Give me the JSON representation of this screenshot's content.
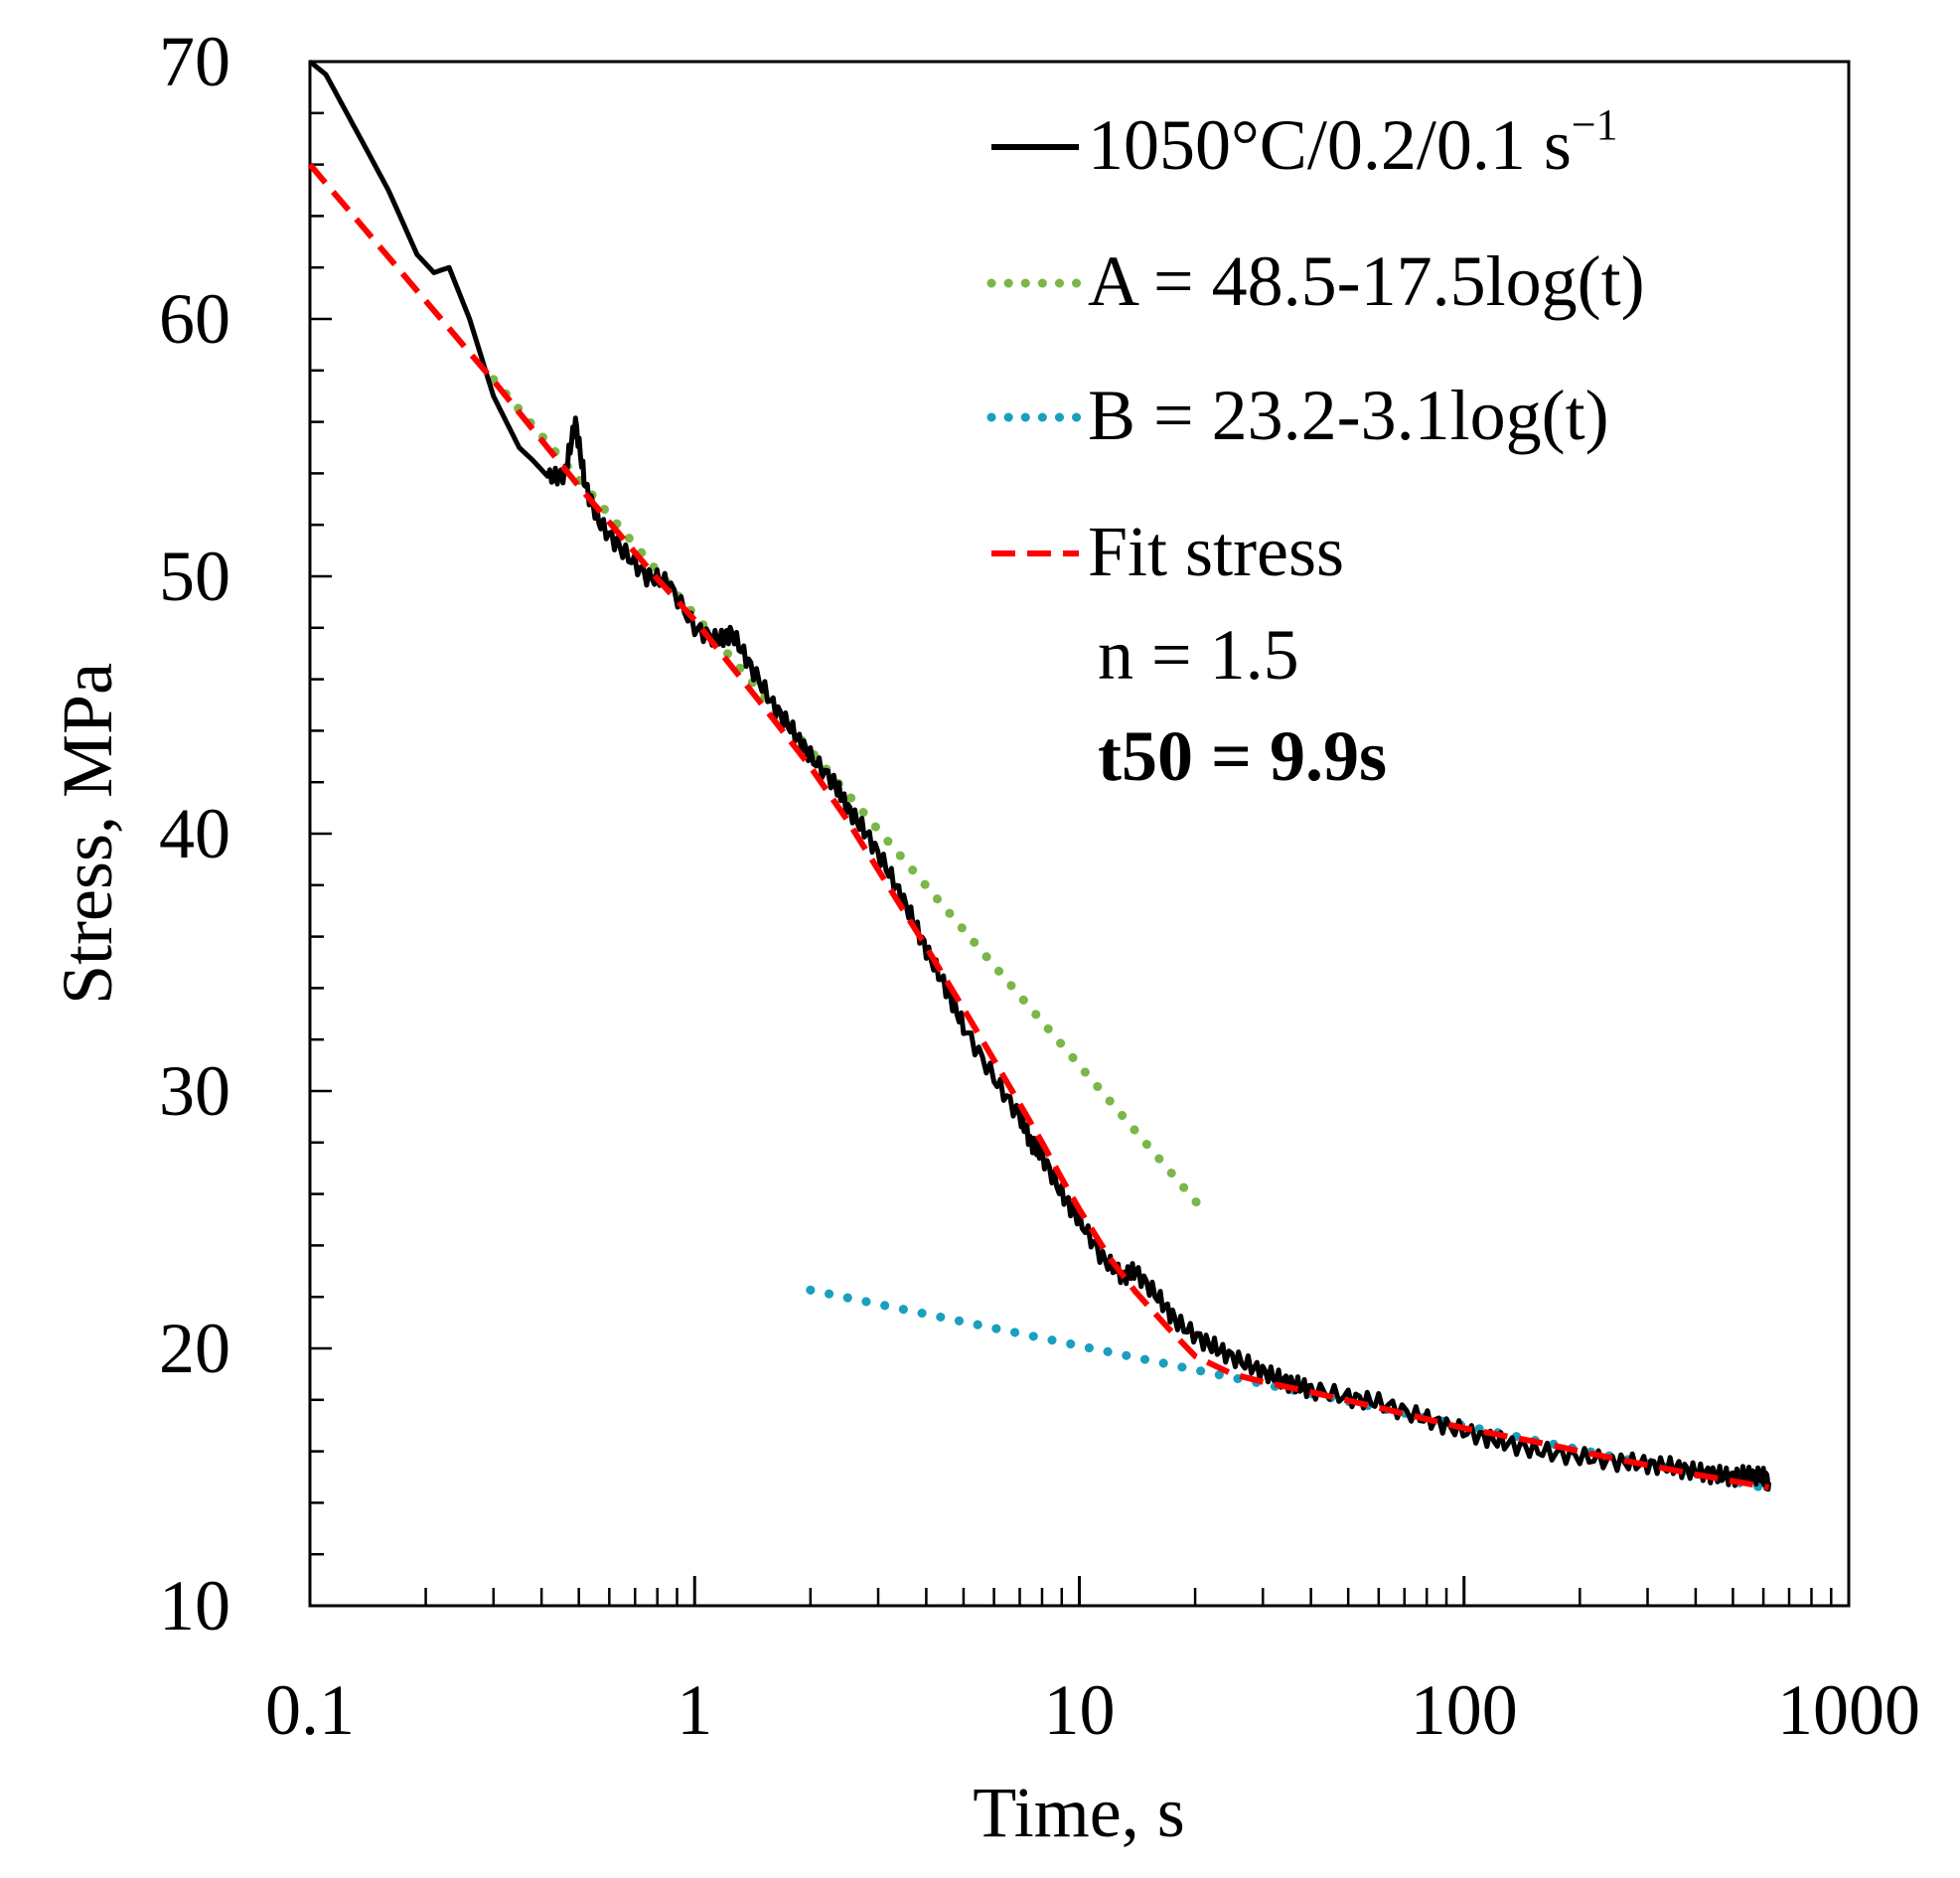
{
  "chart_data": {
    "type": "line",
    "xscale": "log",
    "xlim": [
      0.1,
      1000
    ],
    "ylim": [
      10,
      70
    ],
    "xlabel": "Time, s",
    "ylabel": "Stress, MPa",
    "x_tick_labels": [
      "0.1",
      "1",
      "10",
      "100",
      "1000"
    ],
    "x_ticks": [
      0.1,
      1,
      10,
      100,
      1000
    ],
    "y_tick_labels": [
      "10",
      "20",
      "30",
      "40",
      "50",
      "60",
      "70"
    ],
    "y_ticks": [
      10,
      20,
      30,
      40,
      50,
      60,
      70
    ],
    "legend_position": "top-right",
    "series": [
      {
        "name": "1050°C/0.2/0.1 s",
        "name_superscript": "−1",
        "style": "solid",
        "color": "#000000",
        "x": [
          0.1,
          0.11,
          0.13,
          0.16,
          0.19,
          0.21,
          0.23,
          0.26,
          0.3,
          0.35,
          0.38,
          0.42,
          0.46,
          0.49,
          0.52,
          0.57,
          0.65,
          0.75,
          0.85,
          1.0,
          1.15,
          1.25,
          1.4,
          1.6,
          1.8,
          2.0,
          2.3,
          2.5,
          2.8,
          3.2,
          3.6,
          4.0,
          4.5,
          5.0,
          6.0,
          7.0,
          7.5,
          8.0,
          9.0,
          10.0,
          11.5,
          13.0,
          14.0,
          16.0,
          18.0,
          21.0,
          24.0,
          28.0,
          32.0,
          36.0,
          40.0,
          50.0,
          60.0,
          75.0,
          90.0,
          110.0,
          130.0,
          160.0,
          200.0,
          250.0,
          300.0,
          350.0,
          400.0,
          450.0,
          500.0,
          550.0,
          600.0,
          620.0
        ],
        "y": [
          70.0,
          69.5,
          67.5,
          65.0,
          62.5,
          61.8,
          62.0,
          60.0,
          57.0,
          55.0,
          54.5,
          53.8,
          54.0,
          56.0,
          53.5,
          52.0,
          51.0,
          50.0,
          49.8,
          48.0,
          47.5,
          47.8,
          46.5,
          45.0,
          44.0,
          43.0,
          42.0,
          41.0,
          40.0,
          38.5,
          37.0,
          35.5,
          34.0,
          32.5,
          30.5,
          29.0,
          28.0,
          27.5,
          26.0,
          25.0,
          23.5,
          22.8,
          23.0,
          22.0,
          21.0,
          20.3,
          19.8,
          19.3,
          18.9,
          18.6,
          18.4,
          18.1,
          17.9,
          17.4,
          17.0,
          16.6,
          16.3,
          16.0,
          15.8,
          15.6,
          15.5,
          15.4,
          15.2,
          15.1,
          15.0,
          15.1,
          15.0,
          14.8
        ]
      },
      {
        "name": "A = 48.5-17.5log(t)",
        "style": "dotted",
        "color": "#7ab648",
        "x_range": [
          0.3,
          21
        ],
        "intercept": 48.5,
        "slope": -17.5
      },
      {
        "name": "B = 23.2-3.1log(t)",
        "style": "dotted",
        "color": "#1a9fbf",
        "x_range": [
          2,
          620
        ],
        "intercept": 23.2,
        "slope": -3.1
      },
      {
        "name": "Fit stress",
        "style": "dashed",
        "color": "#ff0000",
        "x": [
          0.1,
          0.2,
          0.3,
          0.5,
          0.8,
          1.0,
          1.5,
          2.0,
          2.5,
          3.0,
          4.0,
          5.0,
          6.0,
          7.0,
          8.0,
          9.0,
          10.0,
          12.0,
          14.0,
          17.0,
          20.0,
          25.0,
          30.0,
          40.0,
          60.0,
          100.0,
          150.0,
          250.0,
          400.0,
          620.0
        ],
        "y": [
          66.0,
          60.7,
          57.6,
          53.5,
          49.9,
          48.3,
          45.0,
          42.6,
          40.5,
          38.6,
          35.6,
          33.2,
          31.2,
          29.5,
          28.0,
          26.6,
          25.4,
          23.5,
          22.2,
          20.8,
          19.7,
          19.0,
          18.7,
          18.3,
          17.7,
          16.9,
          16.4,
          15.7,
          15.1,
          14.6
        ]
      }
    ],
    "annotations": [
      "n = 1.5",
      "t50 = 9.9s"
    ]
  }
}
